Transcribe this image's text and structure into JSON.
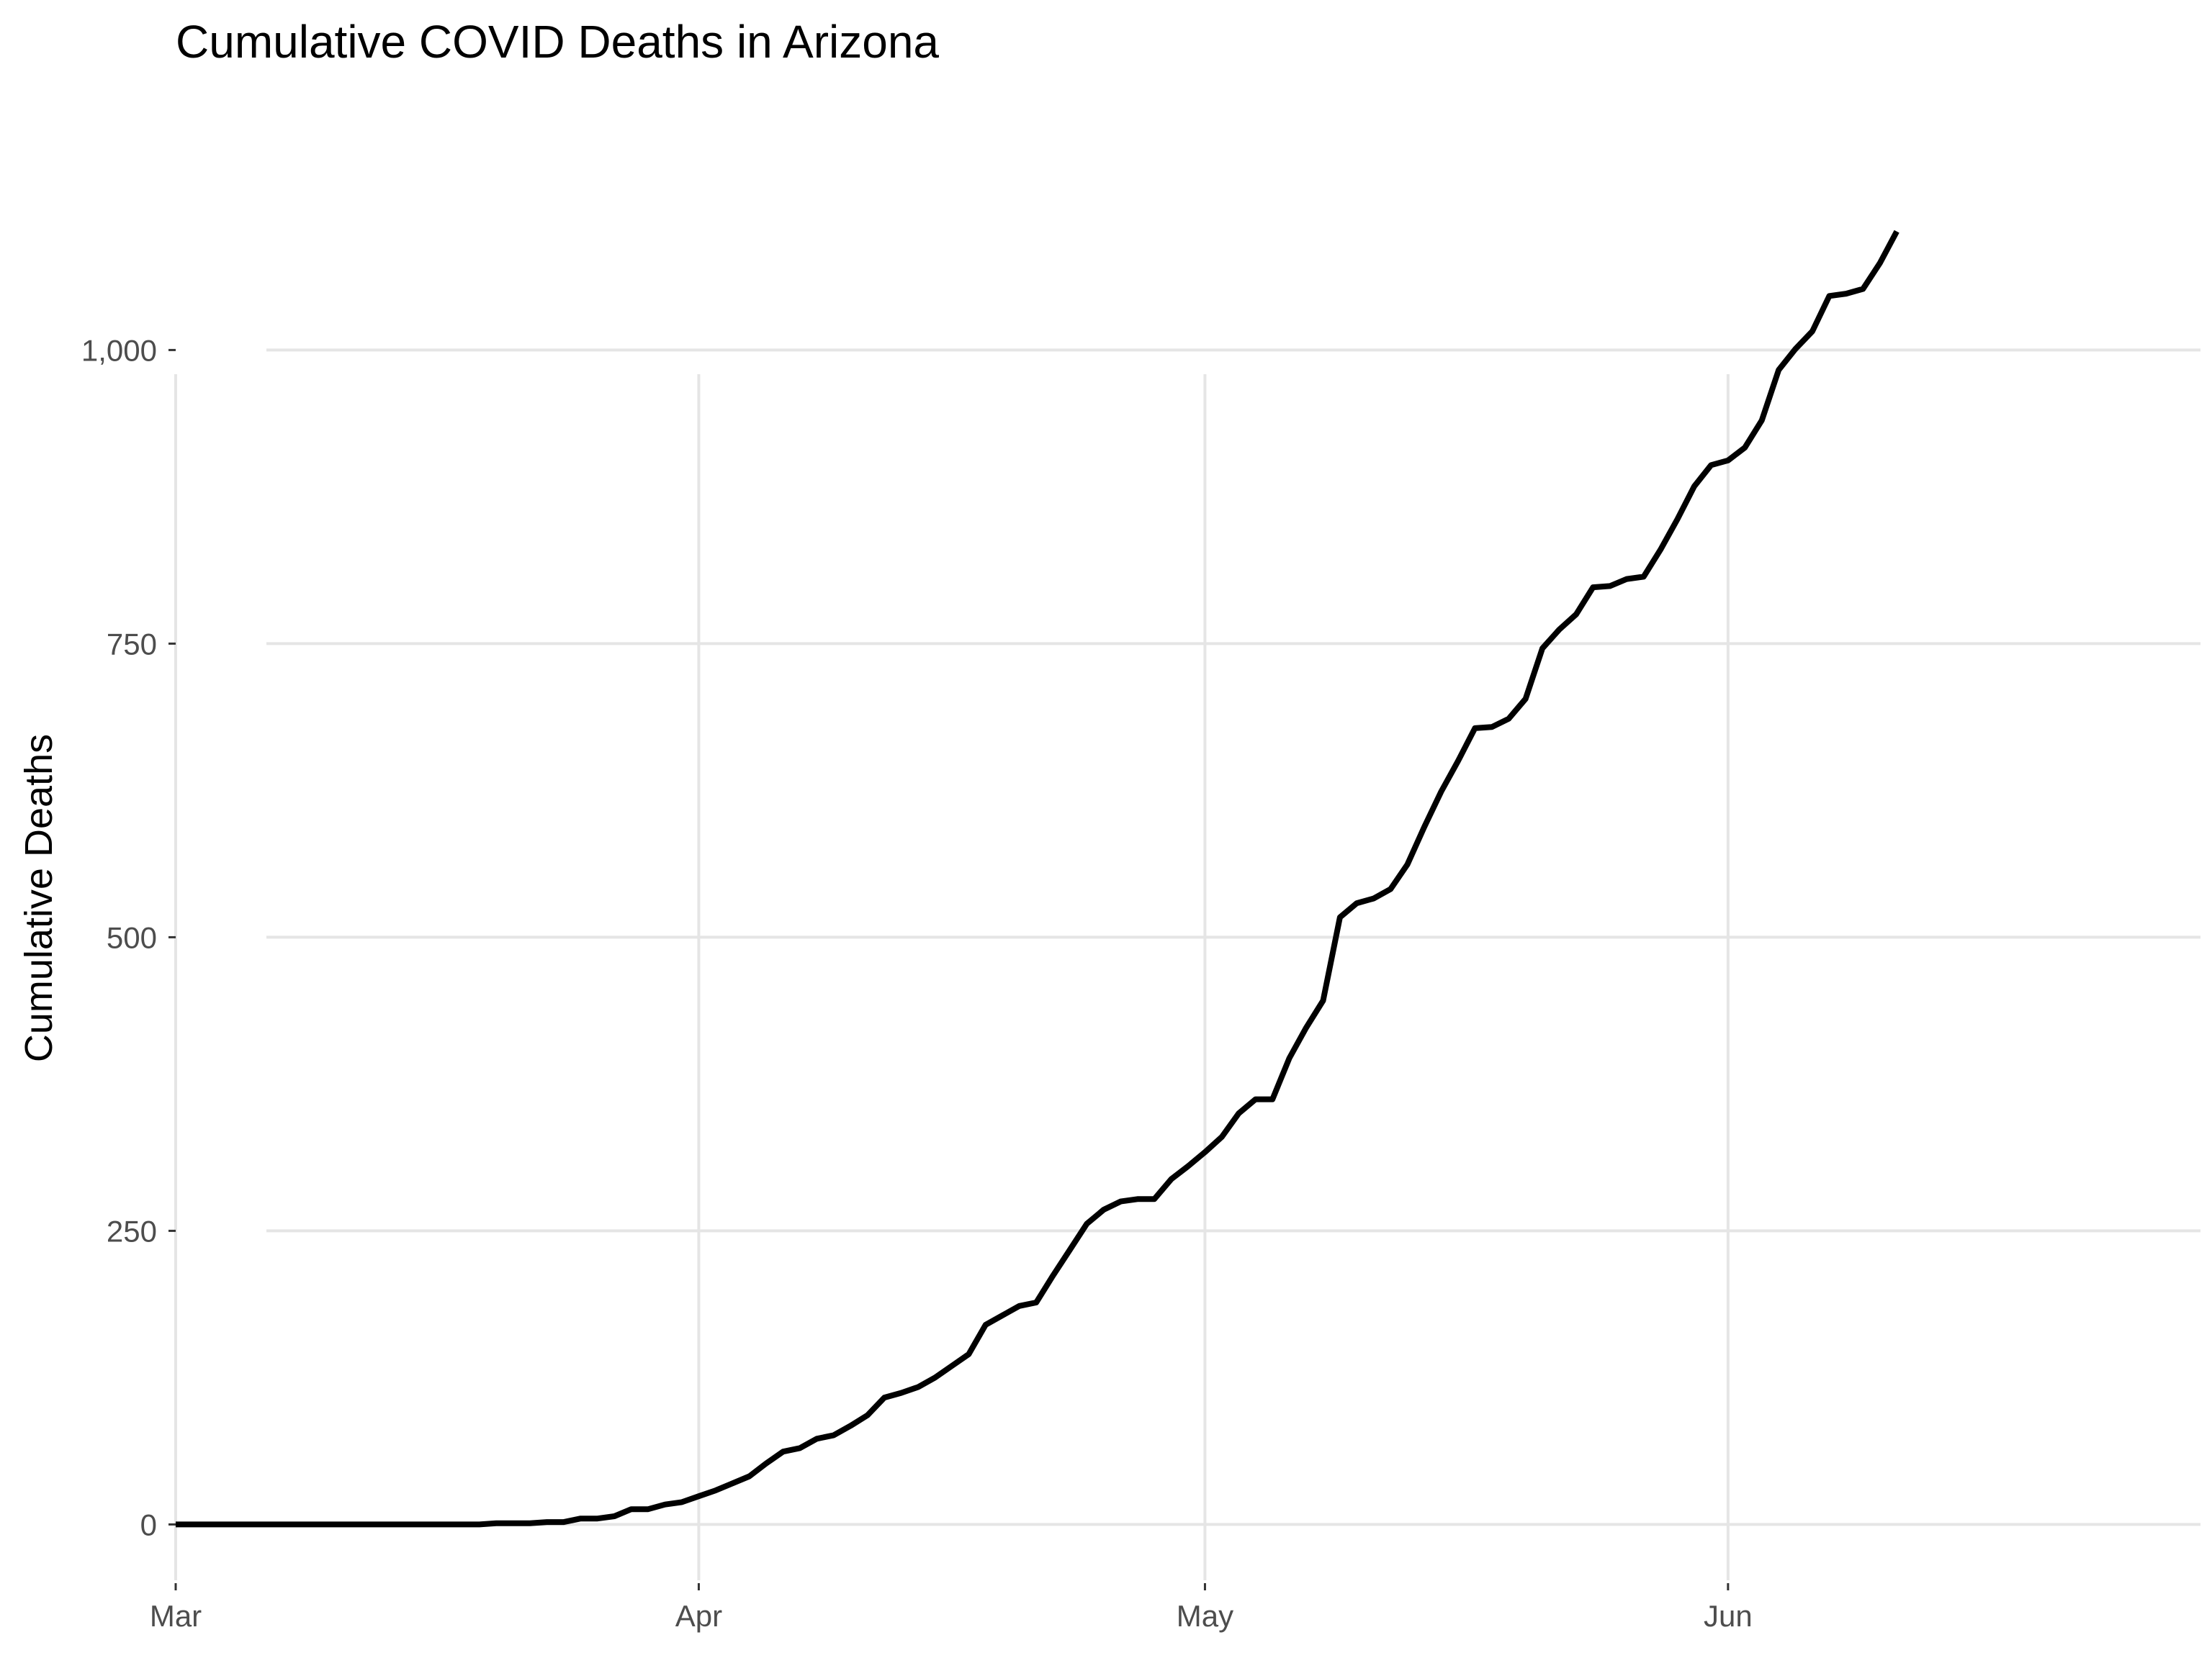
{
  "chart_data": {
    "type": "line",
    "title": "Cumulative COVID Deaths in Arizona",
    "xlabel": "",
    "ylabel": "Cumulative Deaths",
    "x_axis_type": "date",
    "xlim": [
      "2020-03-01",
      "2020-06-29"
    ],
    "ylim": [
      -50,
      1200
    ],
    "grid": true,
    "legend": "none",
    "line_color": "#000000",
    "y_ticks": [
      {
        "value": 0,
        "label": "0"
      },
      {
        "value": 250,
        "label": "250"
      },
      {
        "value": 500,
        "label": "500"
      },
      {
        "value": 750,
        "label": "750"
      },
      {
        "value": 1000,
        "label": "1,000"
      }
    ],
    "x_ticks": [
      {
        "value": "2020-03-01",
        "label": "Mar"
      },
      {
        "value": "2020-04-01",
        "label": "Apr"
      },
      {
        "value": "2020-05-01",
        "label": "May"
      },
      {
        "value": "2020-06-01",
        "label": "Jun"
      }
    ],
    "x": [
      "2020-03-01",
      "2020-03-02",
      "2020-03-03",
      "2020-03-04",
      "2020-03-05",
      "2020-03-06",
      "2020-03-07",
      "2020-03-08",
      "2020-03-09",
      "2020-03-10",
      "2020-03-11",
      "2020-03-12",
      "2020-03-13",
      "2020-03-14",
      "2020-03-15",
      "2020-03-16",
      "2020-03-17",
      "2020-03-18",
      "2020-03-19",
      "2020-03-20",
      "2020-03-21",
      "2020-03-22",
      "2020-03-23",
      "2020-03-24",
      "2020-03-25",
      "2020-03-26",
      "2020-03-27",
      "2020-03-28",
      "2020-03-29",
      "2020-03-30",
      "2020-03-31",
      "2020-04-01",
      "2020-04-02",
      "2020-04-03",
      "2020-04-04",
      "2020-04-05",
      "2020-04-06",
      "2020-04-07",
      "2020-04-08",
      "2020-04-09",
      "2020-04-10",
      "2020-04-11",
      "2020-04-12",
      "2020-04-13",
      "2020-04-14",
      "2020-04-15",
      "2020-04-16",
      "2020-04-17",
      "2020-04-18",
      "2020-04-19",
      "2020-04-20",
      "2020-04-21",
      "2020-04-22",
      "2020-04-23",
      "2020-04-24",
      "2020-04-25",
      "2020-04-26",
      "2020-04-27",
      "2020-04-28",
      "2020-04-29",
      "2020-04-30",
      "2020-05-01",
      "2020-05-02",
      "2020-05-03",
      "2020-05-04",
      "2020-05-05",
      "2020-05-06",
      "2020-05-07",
      "2020-05-08",
      "2020-05-09",
      "2020-05-10",
      "2020-05-11",
      "2020-05-12",
      "2020-05-13",
      "2020-05-14",
      "2020-05-15",
      "2020-05-16",
      "2020-05-17",
      "2020-05-18",
      "2020-05-19",
      "2020-05-20",
      "2020-05-21",
      "2020-05-22",
      "2020-05-23",
      "2020-05-24",
      "2020-05-25",
      "2020-05-26",
      "2020-05-27",
      "2020-05-28",
      "2020-05-29",
      "2020-05-30",
      "2020-05-31",
      "2020-06-01",
      "2020-06-02",
      "2020-06-03",
      "2020-06-04",
      "2020-06-05",
      "2020-06-06",
      "2020-06-07",
      "2020-06-08",
      "2020-06-09",
      "2020-06-10",
      "2020-06-11"
    ],
    "series": [
      {
        "values": [
          0,
          0,
          0,
          0,
          0,
          0,
          0,
          0,
          0,
          0,
          0,
          0,
          0,
          0,
          0,
          0,
          0,
          0,
          0,
          1,
          1,
          1,
          2,
          2,
          5,
          5,
          7,
          13,
          13,
          17,
          19,
          24,
          29,
          35,
          41,
          52,
          62,
          65,
          73,
          76,
          84,
          93,
          108,
          112,
          117,
          125,
          135,
          145,
          170,
          178,
          186,
          189,
          212,
          234,
          256,
          268,
          275,
          277,
          277,
          294,
          305,
          317,
          330,
          350,
          362,
          362,
          397,
          423,
          446,
          517,
          529,
          533,
          541,
          562,
          594,
          624,
          650,
          678,
          679,
          686,
          703,
          746,
          762,
          775,
          798,
          799,
          805,
          807,
          830,
          856,
          884,
          902,
          906,
          917,
          940,
          983,
          1001,
          1016,
          1046,
          1048,
          1052,
          1074,
          1101
        ]
      }
    ]
  }
}
